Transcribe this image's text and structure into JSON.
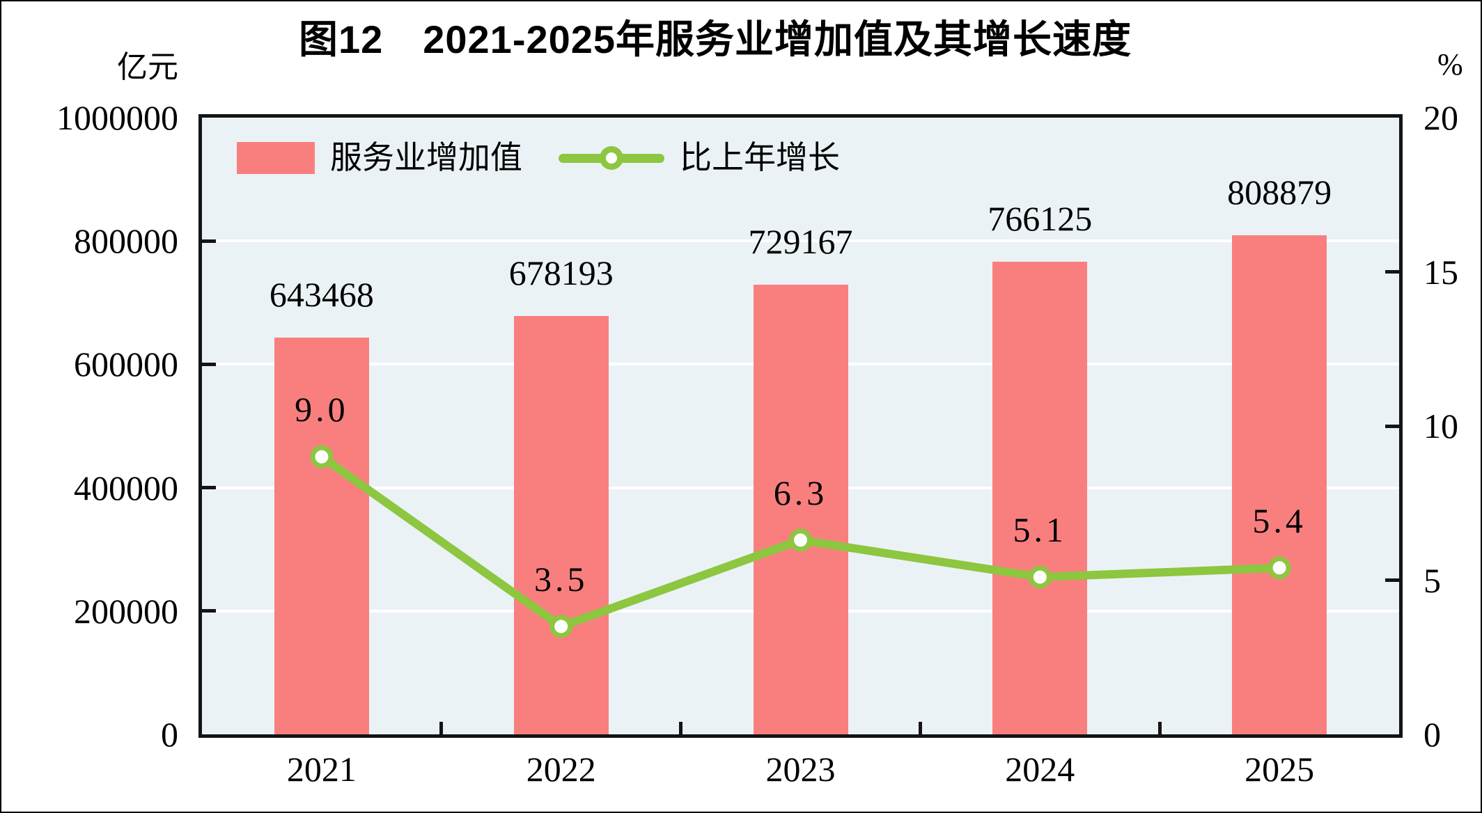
{
  "title": "图12　2021-2025年服务业增加值及其增长速度",
  "left_axis": {
    "unit": "亿元",
    "ticks": [
      {
        "value": 0,
        "label": "0"
      },
      {
        "value": 200000,
        "label": "200000"
      },
      {
        "value": 400000,
        "label": "400000"
      },
      {
        "value": 600000,
        "label": "600000"
      },
      {
        "value": 800000,
        "label": "800000"
      },
      {
        "value": 1000000,
        "label": "1000000"
      }
    ]
  },
  "right_axis": {
    "unit": "%",
    "ticks": [
      {
        "value": 0,
        "label": "0"
      },
      {
        "value": 5,
        "label": "5"
      },
      {
        "value": 10,
        "label": "10"
      },
      {
        "value": 15,
        "label": "15"
      },
      {
        "value": 20,
        "label": "20"
      }
    ]
  },
  "colors": {
    "bar": "#F97F7F",
    "line": "#8DC63F",
    "marker_fill": "#FFFFFF",
    "plot_background": "#EBF2F6",
    "gridline": "#FFFFFF",
    "axis": "#141414",
    "text": "#000000"
  },
  "chart_data": {
    "type": "bar+line",
    "title": "图12　2021-2025年服务业增加值及其增长速度",
    "categories": [
      "2021",
      "2022",
      "2023",
      "2024",
      "2025"
    ],
    "series": [
      {
        "name": "服务业增加值",
        "type": "bar",
        "axis": "left",
        "unit": "亿元",
        "values": [
          643468,
          678193,
          729167,
          766125,
          808879
        ],
        "labels": [
          "643468",
          "678193",
          "729167",
          "766125",
          "808879"
        ],
        "color": "#F97F7F"
      },
      {
        "name": "比上年增长",
        "type": "line",
        "axis": "right",
        "unit": "%",
        "values": [
          9.0,
          3.5,
          6.3,
          5.1,
          5.4
        ],
        "labels": [
          "9.0",
          "3.5",
          "6.3",
          "5.1",
          "5.4"
        ],
        "color": "#8DC63F",
        "marker": "circle-white-fill"
      }
    ],
    "left_ylim": [
      0,
      1000000
    ],
    "right_ylim": [
      0,
      20
    ],
    "grid": true,
    "gridlines": "horizontal-white-every-200000",
    "legend_position": "top-left-inside",
    "ylabel_left": "亿元",
    "ylabel_right": "%",
    "xlabel": ""
  }
}
